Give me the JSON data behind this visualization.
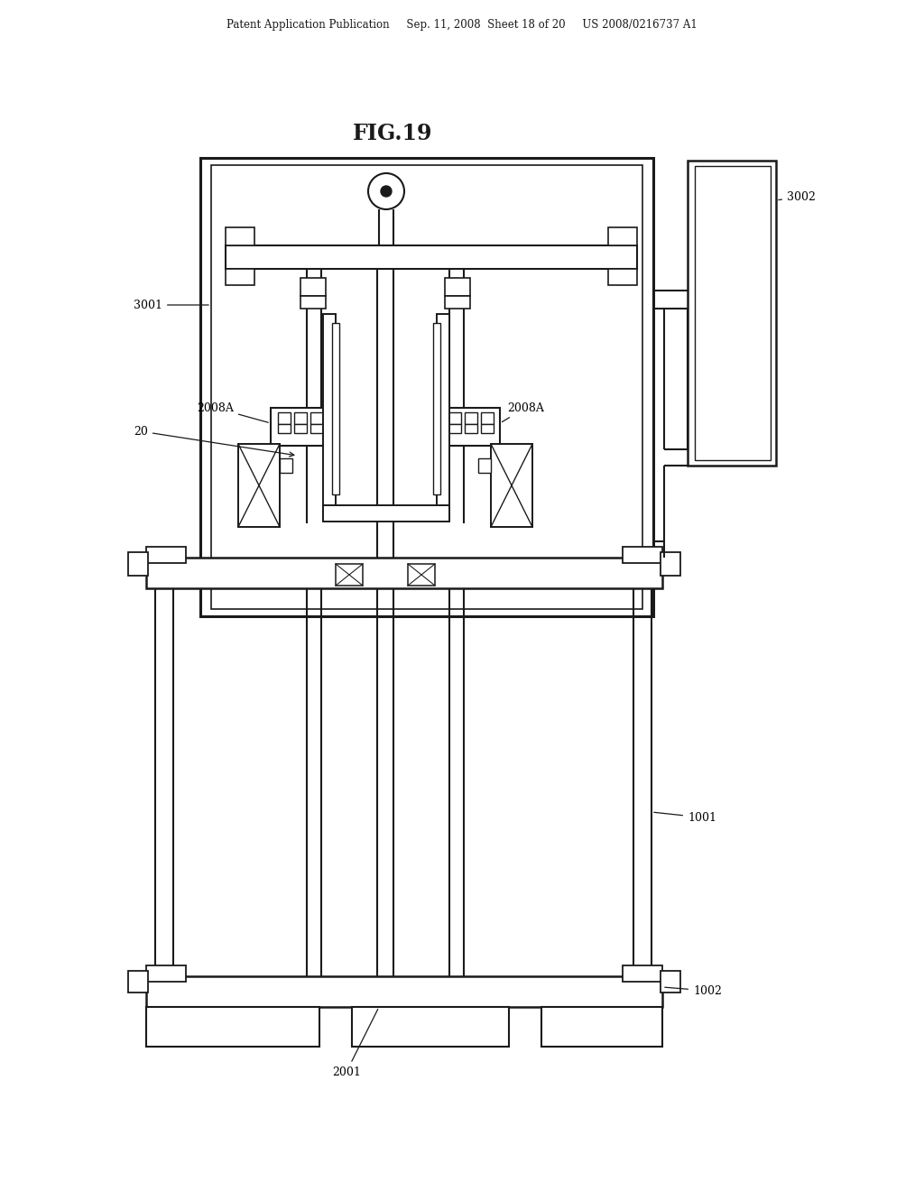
{
  "bg_color": "#ffffff",
  "line_color": "#1a1a1a",
  "title": "FIG.19",
  "header": "Patent Application Publication     Sep. 11, 2008  Sheet 18 of 20     US 2008/0216737 A1"
}
